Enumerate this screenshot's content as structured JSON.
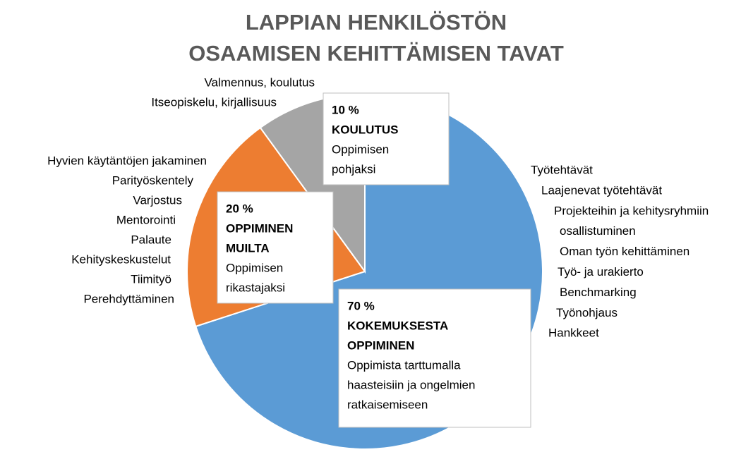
{
  "chart_data": {
    "type": "pie",
    "title": [
      "LAPPIAN HENKILÖSTÖN",
      "OSAAMISEN KEHITTÄMISEN  TAVAT"
    ],
    "categories": [
      [
        "KOKEMUKSESTA",
        "OPPIMINEN"
      ],
      [
        "OPPIMINEN",
        "MUILTA"
      ],
      [
        "KOULUTUS"
      ]
    ],
    "values": [
      70,
      20,
      10
    ],
    "value_labels": [
      "70 %",
      "20 %",
      "10 %"
    ],
    "colors": [
      "#5b9bd5",
      "#ed7d31",
      "#a5a5a5"
    ],
    "descriptions": [
      [
        "Oppimista tarttumalla",
        "haasteisiin ja ongelmien",
        "ratkaisemiseen"
      ],
      [
        "Oppimisen",
        "rikastajaksi"
      ],
      [
        "Oppimisen",
        "pohjaksi"
      ]
    ],
    "annotations": [
      [
        "Työtehtävät",
        "Laajenevat työtehtävät",
        "Projekteihin ja kehitysryhmiin",
        "osallistuminen",
        "Oman työn kehittäminen",
        "Työ- ja urakierto",
        "Benchmarking",
        "Työnohjaus",
        "Hankkeet"
      ],
      [
        "Hyvien käytäntöjen jakaminen",
        "Parityöskentely",
        "Varjostus",
        "Mentorointi",
        "Palaute",
        "Kehityskeskustelut",
        "Tiimityö",
        "Perehdyttäminen"
      ],
      [
        "Valmennus, koulutus",
        "Itseopiskelu, kirjallisuus"
      ]
    ]
  }
}
